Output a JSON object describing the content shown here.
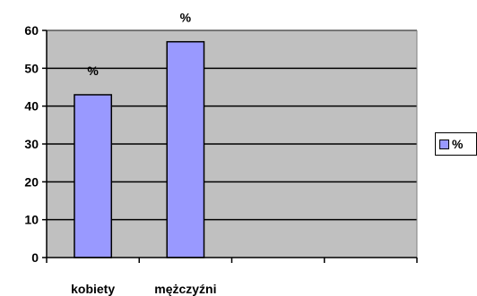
{
  "chart_data": {
    "type": "bar",
    "categories": [
      "kobiety",
      "mężczyźni",
      "",
      ""
    ],
    "series": [
      {
        "name": "%",
        "values": [
          43,
          57,
          null,
          null
        ],
        "data_labels": [
          "%",
          "%",
          "",
          ""
        ]
      }
    ],
    "title": "",
    "xlabel": "",
    "ylabel": "",
    "ylim": [
      0,
      60
    ],
    "yticks": [
      0,
      10,
      20,
      30,
      40,
      50,
      60
    ],
    "grid": true,
    "legend": "right",
    "colors": {
      "plot_background": "#c0c0c0",
      "bar_fill": "#9999ff",
      "bar_stroke": "#000000",
      "gridline": "#000000"
    }
  }
}
